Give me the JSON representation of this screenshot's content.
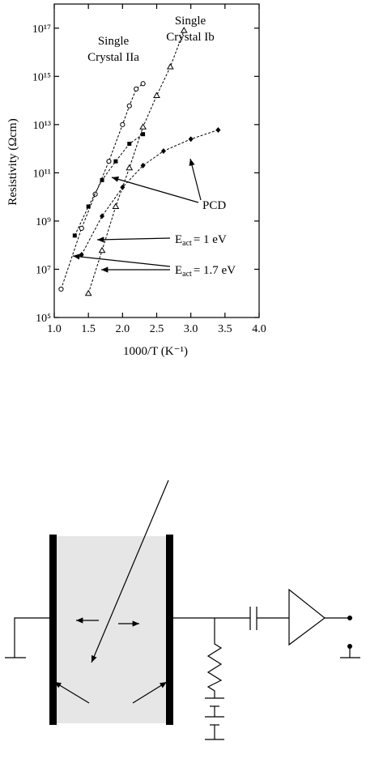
{
  "chart_data": {
    "type": "scatter",
    "xlabel": "1000/T (K⁻¹)",
    "ylabel": "Resistivity (Ωcm)",
    "xlim": [
      1.0,
      4.0
    ],
    "xticks": [
      {
        "value": 1.0,
        "label": "1.0"
      },
      {
        "value": 1.5,
        "label": "1.5"
      },
      {
        "value": 2.0,
        "label": "2.0"
      },
      {
        "value": 2.5,
        "label": "2.5"
      },
      {
        "value": 3.0,
        "label": "3.0"
      },
      {
        "value": 3.5,
        "label": "3.5"
      },
      {
        "value": 4.0,
        "label": "4.0"
      }
    ],
    "ylim": [
      100000.0,
      1e+18
    ],
    "log_y": true,
    "yticks": [
      {
        "value": 100000.0,
        "label": "10⁵"
      },
      {
        "value": 10000000.0,
        "label": "10⁷"
      },
      {
        "value": 1000000000.0,
        "label": "10⁹"
      },
      {
        "value": 100000000000.0,
        "label": "10¹¹"
      },
      {
        "value": 10000000000000.0,
        "label": "10¹³"
      },
      {
        "value": 1000000000000000.0,
        "label": "10¹⁵"
      },
      {
        "value": 1e+17,
        "label": "10¹⁷"
      }
    ],
    "series": [
      {
        "marker": "circle",
        "color": "#000",
        "x": [
          1.1,
          1.4,
          1.6,
          1.8,
          2.0,
          2.1,
          2.2,
          2.3
        ],
        "values": [
          1500000.0,
          500000000.0,
          13000000000.0,
          300000000000.0,
          10000000000000.0,
          60000000000000.0,
          300000000000000.0,
          500000000000000.0
        ]
      },
      {
        "marker": "triangle",
        "color": "#000",
        "x": [
          1.5,
          1.7,
          1.9,
          2.1,
          2.3,
          2.5,
          2.7,
          2.9
        ],
        "values": [
          1000000.0,
          60000000.0,
          4000000000.0,
          160000000000.0,
          8000000000000.0,
          160000000000000.0,
          2500000000000000.0,
          8e+16
        ]
      },
      {
        "marker": "diamond",
        "color": "#000",
        "x": [
          1.4,
          1.7,
          2.0,
          2.3,
          2.6,
          3.0,
          3.4
        ],
        "values": [
          40000000.0,
          1600000000.0,
          25000000000.0,
          200000000000.0,
          800000000000.0,
          2500000000000.0,
          6000000000000.0
        ]
      },
      {
        "marker": "square",
        "color": "#000",
        "x": [
          1.3,
          1.5,
          1.7,
          1.9,
          2.1,
          2.3
        ],
        "values": [
          250000000.0,
          4000000000.0,
          50000000000.0,
          300000000000.0,
          1600000000000.0,
          4000000000000.0
        ]
      }
    ],
    "annotations": [
      {
        "lines": [
          "Single",
          "Crystal IIa"
        ]
      },
      {
        "lines": [
          "Single",
          "Crystal Ib"
        ]
      },
      {
        "lines": [
          "PCD"
        ]
      },
      {
        "lines": [
          "E",
          "act",
          "= 1 eV"
        ]
      },
      {
        "lines": [
          "E",
          "act",
          "= 1.7 eV"
        ]
      }
    ]
  }
}
